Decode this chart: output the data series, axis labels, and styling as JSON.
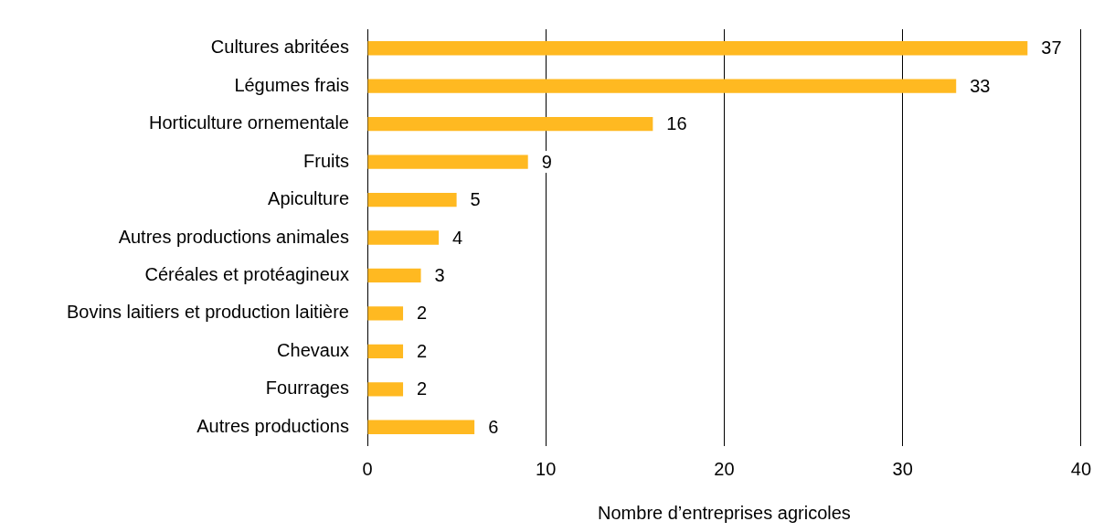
{
  "chart_data": {
    "type": "bar",
    "orientation": "horizontal",
    "categories": [
      "Cultures abritées",
      "Légumes frais",
      "Horticulture ornementale",
      "Fruits",
      "Apiculture",
      "Autres productions animales",
      "Céréales et protéagineux",
      "Bovins laitiers et production laitière",
      "Chevaux",
      "Fourrages",
      "Autres productions"
    ],
    "values": [
      37,
      33,
      16,
      9,
      5,
      4,
      3,
      2,
      2,
      2,
      6
    ],
    "color": "#ffb921",
    "xlabel": "Nombre d’entreprises agricoles",
    "xlim": [
      0,
      40
    ],
    "xticks": [
      0,
      10,
      20,
      30,
      40
    ],
    "grid": "x",
    "data_labels": true
  }
}
